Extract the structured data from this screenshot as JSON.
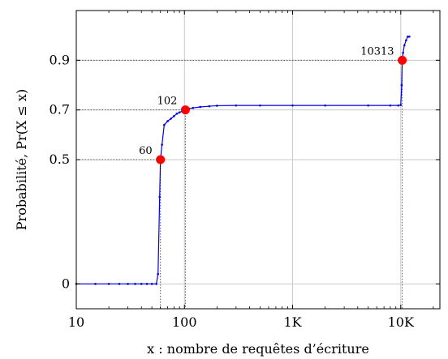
{
  "chart_data": {
    "type": "line",
    "title": "",
    "xlabel": "x : nombre de requêtes d’écriture",
    "ylabel": "Probabilité, Pr(X ≤ x)",
    "xscale": "log",
    "xlim": [
      10,
      23000
    ],
    "ylim": [
      -0.1,
      1.1
    ],
    "xticks": [
      {
        "value": 10,
        "label": "10"
      },
      {
        "value": 100,
        "label": "100"
      },
      {
        "value": 1000,
        "label": "1K"
      },
      {
        "value": 10000,
        "label": "10K"
      }
    ],
    "yticks": [
      {
        "value": 0,
        "label": "0"
      },
      {
        "value": 0.5,
        "label": "0.5"
      },
      {
        "value": 0.7,
        "label": "0.7"
      },
      {
        "value": 0.9,
        "label": "0.9"
      }
    ],
    "grid": true,
    "series": [
      {
        "color": "#0000dd",
        "x": [
          10,
          15,
          20,
          25,
          30,
          35,
          40,
          45,
          50,
          55,
          57,
          59,
          60,
          62,
          65,
          70,
          75,
          80,
          85,
          90,
          95,
          100,
          110,
          120,
          140,
          170,
          200,
          300,
          500,
          1000,
          2000,
          5000,
          8000,
          9500,
          10000,
          10200,
          10313,
          10500,
          10800,
          11200,
          11600,
          12000
        ],
        "y": [
          0,
          0,
          0,
          0,
          0,
          0,
          0,
          0,
          0,
          0,
          0.04,
          0.35,
          0.5,
          0.56,
          0.64,
          0.655,
          0.665,
          0.675,
          0.685,
          0.69,
          0.695,
          0.7,
          0.705,
          0.708,
          0.712,
          0.715,
          0.717,
          0.718,
          0.718,
          0.718,
          0.718,
          0.718,
          0.718,
          0.718,
          0.72,
          0.8,
          0.9,
          0.93,
          0.96,
          0.98,
          0.995,
          0.995
        ]
      }
    ],
    "highlights": [
      {
        "x": 60,
        "y": 0.5,
        "label": "60"
      },
      {
        "x": 102,
        "y": 0.7,
        "label": "102"
      },
      {
        "x": 10313,
        "y": 0.9,
        "label": "10313"
      }
    ],
    "highlight_color": "#ff0000",
    "guide_color": "#555555"
  }
}
